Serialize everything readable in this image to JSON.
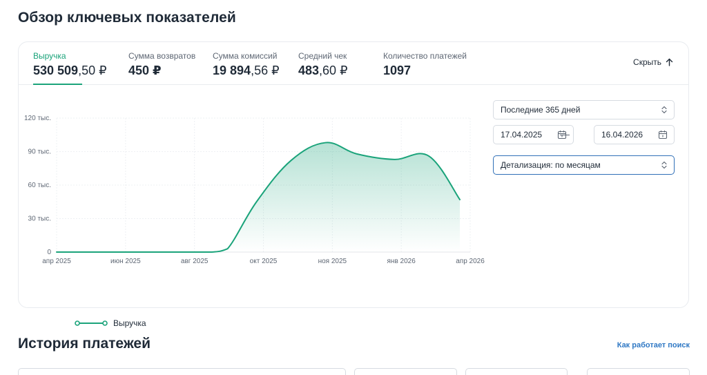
{
  "page_title": "Обзор ключевых показателей",
  "metrics": [
    {
      "label": "Выручка",
      "value_main": "530 509",
      "value_cents": ",50 ₽",
      "active": true
    },
    {
      "label": "Сумма возвратов",
      "value_main": "450 ₽",
      "value_cents": "",
      "active": false
    },
    {
      "label": "Сумма комиссий",
      "value_main": "19 894",
      "value_cents": ",56 ₽",
      "active": false
    },
    {
      "label": "Средний чек",
      "value_main": "483",
      "value_cents": ",60 ₽",
      "active": false
    },
    {
      "label": "Количество платежей",
      "value_main": "1097",
      "value_cents": "",
      "active": false
    }
  ],
  "hide_button": {
    "label": "Скрыть",
    "icon": "arrow-up-icon"
  },
  "filters": {
    "period": {
      "value": "Последние 365 дней"
    },
    "date_from": {
      "value": "17.04.2025"
    },
    "date_to": {
      "value": "16.04.2026"
    },
    "granularity": {
      "value": "Детализация: по месяцам"
    }
  },
  "colors": {
    "accent": "#1aa37a",
    "link": "#2f78c4",
    "focus": "#2f6fb7"
  },
  "chart_data": {
    "type": "area",
    "x": [
      "апр 2025",
      "июн 2025",
      "авг 2025",
      "окт 2025",
      "ноя 2025",
      "янв 2026",
      "апр 2026"
    ],
    "ylim": [
      0,
      120000
    ],
    "yticks": [
      {
        "value": 0,
        "label": "0"
      },
      {
        "value": 30000,
        "label": "30 тыс."
      },
      {
        "value": 60000,
        "label": "60 тыс."
      },
      {
        "value": 90000,
        "label": "90 тыс."
      },
      {
        "value": 120000,
        "label": "120 тыс."
      }
    ],
    "grid": true,
    "legend": "bottom-left",
    "series": [
      {
        "name": "Выручка",
        "points": [
          {
            "x": 0,
            "y": 0
          },
          {
            "x": 1,
            "y": 0
          },
          {
            "x": 2,
            "y": 0
          },
          {
            "x": 2.25,
            "y": 0
          },
          {
            "x": 2.48,
            "y": 3000
          },
          {
            "x": 2.9,
            "y": 45000
          },
          {
            "x": 3.4,
            "y": 82000
          },
          {
            "x": 3.9,
            "y": 98000
          },
          {
            "x": 4.35,
            "y": 88000
          },
          {
            "x": 4.9,
            "y": 83000
          },
          {
            "x": 5.4,
            "y": 86000
          },
          {
            "x": 5.85,
            "y": 47000
          }
        ]
      }
    ]
  },
  "history": {
    "title": "История платежей",
    "help_link": "Как работает поиск"
  }
}
